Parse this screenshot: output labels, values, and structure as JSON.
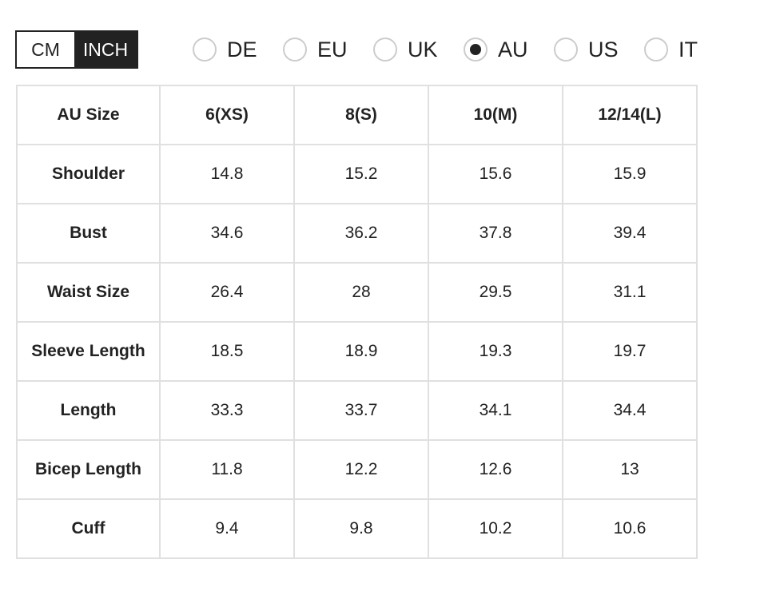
{
  "unit_toggle": {
    "options": [
      "CM",
      "INCH"
    ],
    "selected": "INCH"
  },
  "regions": {
    "options": [
      "DE",
      "EU",
      "UK",
      "AU",
      "US",
      "IT"
    ],
    "selected": "AU"
  },
  "table": {
    "headers": [
      "AU Size",
      "6(XS)",
      "8(S)",
      "10(M)",
      "12/14(L)"
    ],
    "rows": [
      [
        "Shoulder",
        "14.8",
        "15.2",
        "15.6",
        "15.9"
      ],
      [
        "Bust",
        "34.6",
        "36.2",
        "37.8",
        "39.4"
      ],
      [
        "Waist Size",
        "26.4",
        "28",
        "29.5",
        "31.1"
      ],
      [
        "Sleeve Length",
        "18.5",
        "18.9",
        "19.3",
        "19.7"
      ],
      [
        "Length",
        "33.3",
        "33.7",
        "34.1",
        "34.4"
      ],
      [
        "Bicep Length",
        "11.8",
        "12.2",
        "12.6",
        "13"
      ],
      [
        "Cuff",
        "9.4",
        "9.8",
        "10.2",
        "10.6"
      ]
    ]
  }
}
